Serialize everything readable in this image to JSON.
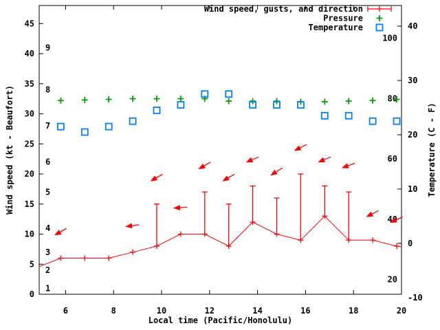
{
  "colors": {
    "wind": "#ff0000",
    "pressure": "#00a000",
    "temperature": "#0080ff",
    "axis": "#000000",
    "background": "#ffffff"
  },
  "chart_data": {
    "type": "line",
    "title": "",
    "grid": false,
    "legend_position": "top-right-inside",
    "legend": [
      {
        "label": "Wind speed, gusts, and direction",
        "marker": "errorbar",
        "color": "#ff0000"
      },
      {
        "label": "Pressure",
        "marker": "plus",
        "color": "#00a000"
      },
      {
        "label": "Temperature",
        "marker": "open-square",
        "color": "#0080ff"
      }
    ],
    "x_axis": {
      "label": "Local time (Pacific/Honolulu)",
      "ticks": [
        6,
        8,
        10,
        12,
        14,
        16,
        18,
        20
      ],
      "range": [
        4.9,
        20
      ]
    },
    "y_left_axis": {
      "label": "Wind speed (kt - Beaufort)",
      "ticks": [
        0,
        5,
        10,
        15,
        20,
        25,
        30,
        35,
        40,
        45
      ],
      "range": [
        0,
        48
      ],
      "beaufort_labels": [
        {
          "bft": "1",
          "kt": 1
        },
        {
          "bft": "2",
          "kt": 4
        },
        {
          "bft": "3",
          "kt": 7
        },
        {
          "bft": "4",
          "kt": 11
        },
        {
          "bft": "5",
          "kt": 17
        },
        {
          "bft": "6",
          "kt": 22
        },
        {
          "bft": "7",
          "kt": 28
        },
        {
          "bft": "8",
          "kt": 34
        },
        {
          "bft": "9",
          "kt": 41
        }
      ]
    },
    "y_right_axis": {
      "label": "Temperature (C - F)",
      "ticks_celsius": [
        -10,
        0,
        10,
        20,
        30,
        40
      ],
      "fahrenheit_labels": [
        20,
        40,
        60,
        80,
        100
      ]
    },
    "series": {
      "time_hours": [
        5.8,
        6.8,
        7.8,
        8.8,
        9.8,
        10.8,
        11.8,
        12.8,
        13.8,
        14.8,
        15.8,
        16.8,
        17.8,
        18.8,
        19.8
      ],
      "wind_speed_kt": [
        6,
        6,
        6,
        7,
        8,
        10,
        10,
        8,
        12,
        10,
        9,
        13,
        9,
        9,
        8
      ],
      "wind_gust_kt": [
        null,
        null,
        null,
        null,
        15,
        null,
        17,
        15,
        18,
        16,
        20,
        18,
        17,
        null,
        null
      ],
      "wind_line_edge_start": {
        "time": 4.9,
        "speed_kt": 4.6
      },
      "wind_line_edge_end": {
        "time": 20.0,
        "speed_kt": 7.9
      },
      "wind_direction_arrows": [
        {
          "time": 5.8,
          "angle_deg": 150
        },
        {
          "time": 8.8,
          "angle_deg": 172
        },
        {
          "time": 9.8,
          "angle_deg": 150
        },
        {
          "time": 10.8,
          "angle_deg": 176
        },
        {
          "time": 11.8,
          "angle_deg": 150
        },
        {
          "time": 12.8,
          "angle_deg": 150
        },
        {
          "time": 13.8,
          "angle_deg": 157
        },
        {
          "time": 14.8,
          "angle_deg": 148
        },
        {
          "time": 15.8,
          "angle_deg": 153
        },
        {
          "time": 16.8,
          "angle_deg": 157
        },
        {
          "time": 17.8,
          "angle_deg": 160
        },
        {
          "time": 18.8,
          "angle_deg": 153
        },
        {
          "time": 19.8,
          "angle_deg": 155
        }
      ],
      "pressure_display_kt_axis": [
        32.2,
        32.3,
        32.4,
        32.5,
        32.5,
        32.5,
        32.5,
        32.1,
        32.1,
        32.1,
        32.0,
        32.0,
        32.1,
        32.2,
        32.4
      ],
      "temperature_celsius": [
        21.5,
        20.5,
        21.5,
        22.5,
        24.5,
        25.5,
        27.5,
        27.5,
        25.5,
        25.5,
        25.5,
        23.5,
        23.5,
        22.5,
        22.5
      ]
    }
  }
}
